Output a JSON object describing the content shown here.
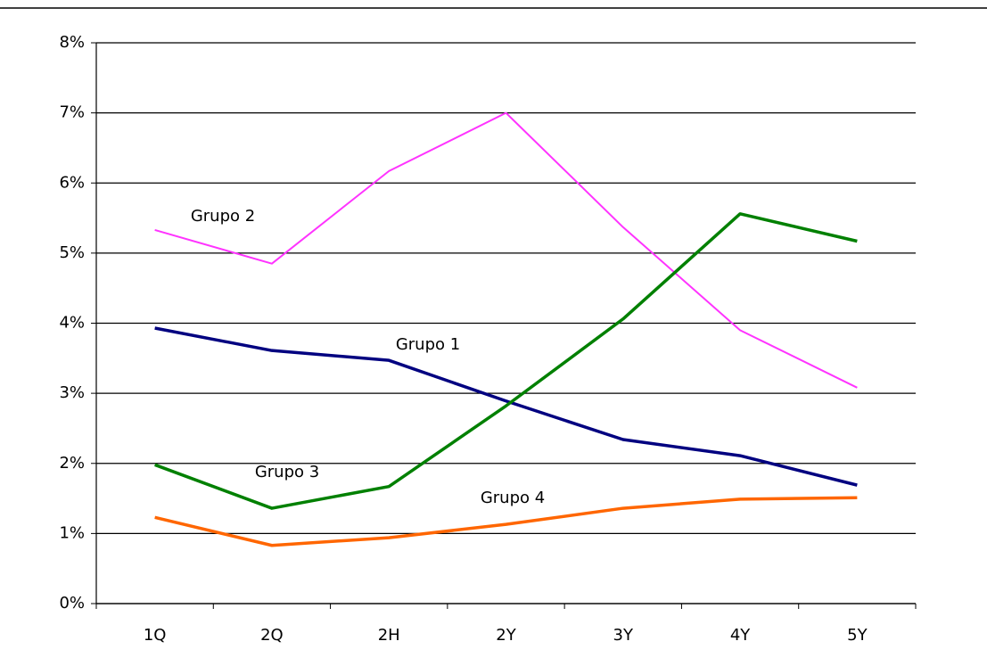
{
  "chart_data": {
    "type": "line",
    "categories": [
      "1Q",
      "2Q",
      "2H",
      "2Y",
      "3Y",
      "4Y",
      "5Y"
    ],
    "series": [
      {
        "name": "Grupo 1",
        "color": "#000080",
        "values": [
          3.93,
          3.61,
          3.47,
          2.89,
          2.34,
          2.11,
          1.69
        ]
      },
      {
        "name": "Grupo 2",
        "color": "#ff33ff",
        "values": [
          5.33,
          4.85,
          6.17,
          7.0,
          5.37,
          3.9,
          3.08
        ]
      },
      {
        "name": "Grupo 3",
        "color": "#008000",
        "values": [
          1.98,
          1.36,
          1.67,
          2.82,
          4.06,
          5.56,
          5.17
        ]
      },
      {
        "name": "Grupo 4",
        "color": "#ff6600",
        "values": [
          1.23,
          0.83,
          0.94,
          1.13,
          1.36,
          1.49,
          1.51
        ]
      }
    ],
    "ylim": [
      0,
      8
    ],
    "yticks": [
      {
        "value": 0,
        "label": "0%"
      },
      {
        "value": 1,
        "label": "1%"
      },
      {
        "value": 2,
        "label": "2%"
      },
      {
        "value": 3,
        "label": "3%"
      },
      {
        "value": 4,
        "label": "4%"
      },
      {
        "value": 5,
        "label": "5%"
      },
      {
        "value": 6,
        "label": "6%"
      },
      {
        "value": 7,
        "label": "7%"
      },
      {
        "value": 8,
        "label": "8%"
      }
    ],
    "grid": true
  }
}
